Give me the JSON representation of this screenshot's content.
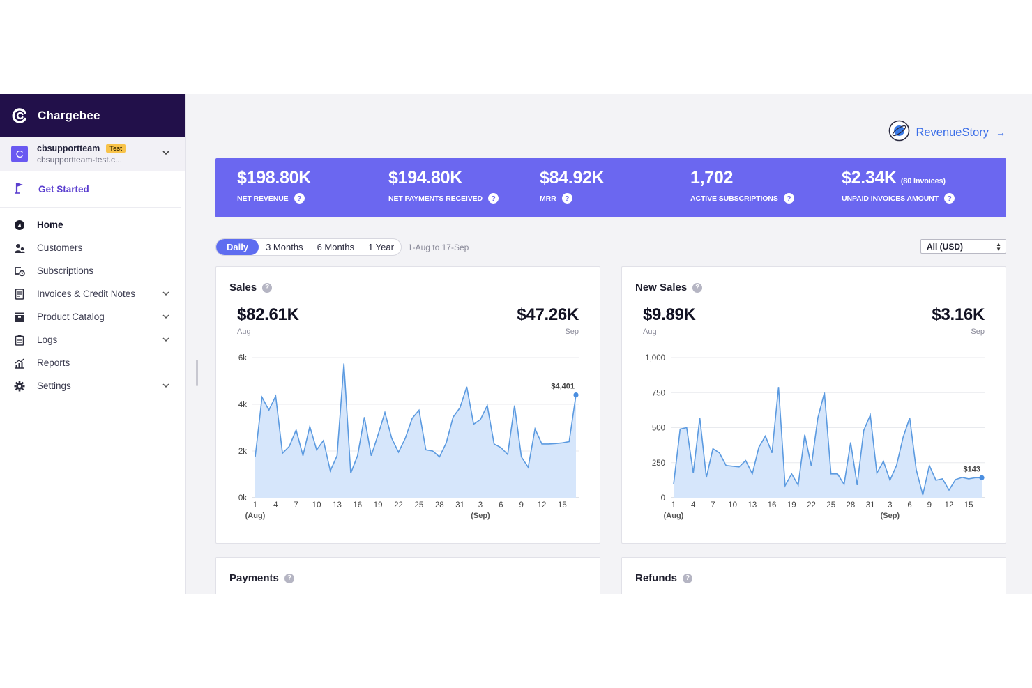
{
  "brand": {
    "name": "Chargebee"
  },
  "site": {
    "avatar_letter": "C",
    "name": "cbsupportteam",
    "badge": "Test",
    "domain": "cbsupportteam-test.c..."
  },
  "nav": {
    "get_started": "Get Started",
    "items": [
      {
        "label": "Home",
        "icon": "home-icon",
        "active": true,
        "has_chevron": false
      },
      {
        "label": "Customers",
        "icon": "customers-icon",
        "has_chevron": false
      },
      {
        "label": "Subscriptions",
        "icon": "subscriptions-icon",
        "has_chevron": false
      },
      {
        "label": "Invoices & Credit Notes",
        "icon": "invoice-icon",
        "has_chevron": true
      },
      {
        "label": "Product Catalog",
        "icon": "catalog-icon",
        "has_chevron": true
      },
      {
        "label": "Logs",
        "icon": "logs-icon",
        "has_chevron": true
      },
      {
        "label": "Reports",
        "icon": "reports-icon",
        "has_chevron": false
      },
      {
        "label": "Settings",
        "icon": "gear-icon",
        "has_chevron": true
      }
    ]
  },
  "revenue_story": {
    "label": "RevenueStory",
    "arrow": "→"
  },
  "kpis": [
    {
      "value": "$198.80K",
      "sub": "",
      "label": "NET REVENUE"
    },
    {
      "value": "$194.80K",
      "sub": "",
      "label": "NET PAYMENTS RECEIVED"
    },
    {
      "value": "$84.92K",
      "sub": "",
      "label": "MRR"
    },
    {
      "value": "1,702",
      "sub": "",
      "label": "ACTIVE SUBSCRIPTIONS"
    },
    {
      "value": "$2.34K",
      "sub": "(80 Invoices)",
      "label": "UNPAID INVOICES AMOUNT"
    }
  ],
  "range": {
    "options": [
      "Daily",
      "3 Months",
      "6 Months",
      "1 Year"
    ],
    "active": "Daily",
    "text": "1-Aug to 17-Sep",
    "currency": "All (USD)"
  },
  "cards": {
    "sales": {
      "title": "Sales",
      "left_value": "$82.61K",
      "left_label": "Aug",
      "right_value": "$47.26K",
      "right_label": "Sep"
    },
    "new_sales": {
      "title": "New Sales",
      "left_value": "$9.89K",
      "left_label": "Aug",
      "right_value": "$3.16K",
      "right_label": "Sep"
    },
    "payments": {
      "title": "Payments"
    },
    "refunds": {
      "title": "Refunds"
    }
  },
  "chart_data": [
    {
      "type": "area",
      "title": "Sales",
      "x_tick_labels": [
        "1",
        "4",
        "7",
        "10",
        "13",
        "16",
        "19",
        "22",
        "25",
        "28",
        "31",
        "3",
        "6",
        "9",
        "12",
        "15"
      ],
      "x_group_labels": [
        "(Aug)",
        "(Sep)"
      ],
      "y_tick_labels": [
        "0k",
        "2k",
        "4k",
        "6k"
      ],
      "ylim": [
        0,
        6000
      ],
      "end_label": "$4,401",
      "x": [
        "Aug 1",
        "Aug 2",
        "Aug 3",
        "Aug 4",
        "Aug 5",
        "Aug 6",
        "Aug 7",
        "Aug 8",
        "Aug 9",
        "Aug 10",
        "Aug 11",
        "Aug 12",
        "Aug 13",
        "Aug 14",
        "Aug 15",
        "Aug 16",
        "Aug 17",
        "Aug 18",
        "Aug 19",
        "Aug 20",
        "Aug 21",
        "Aug 22",
        "Aug 23",
        "Aug 24",
        "Aug 25",
        "Aug 26",
        "Aug 27",
        "Aug 28",
        "Aug 29",
        "Aug 30",
        "Aug 31",
        "Sep 1",
        "Sep 2",
        "Sep 3",
        "Sep 4",
        "Sep 5",
        "Sep 6",
        "Sep 7",
        "Sep 8",
        "Sep 9",
        "Sep 10",
        "Sep 11",
        "Sep 12",
        "Sep 13",
        "Sep 14",
        "Sep 15",
        "Sep 16",
        "Sep 17"
      ],
      "values": [
        1750,
        4300,
        3750,
        4350,
        1900,
        2200,
        2900,
        1800,
        3050,
        2050,
        2450,
        1150,
        1800,
        5750,
        1050,
        1800,
        3450,
        1800,
        2700,
        3650,
        2550,
        1950,
        2550,
        3400,
        3750,
        2050,
        2000,
        1750,
        2350,
        3450,
        3850,
        4750,
        3150,
        3350,
        3950,
        2300,
        2150,
        1850,
        3950,
        1750,
        1300,
        2950,
        2300,
        2300,
        2320,
        2350,
        2400,
        4401
      ]
    },
    {
      "type": "area",
      "title": "New Sales",
      "x_tick_labels": [
        "1",
        "4",
        "7",
        "10",
        "13",
        "16",
        "19",
        "22",
        "25",
        "28",
        "31",
        "3",
        "6",
        "9",
        "12",
        "15"
      ],
      "x_group_labels": [
        "(Aug)",
        "(Sep)"
      ],
      "y_tick_labels": [
        "0",
        "250",
        "500",
        "750",
        "1,000"
      ],
      "ylim": [
        0,
        1000
      ],
      "end_label": "$143",
      "x": [
        "Aug 1",
        "Aug 2",
        "Aug 3",
        "Aug 4",
        "Aug 5",
        "Aug 6",
        "Aug 7",
        "Aug 8",
        "Aug 9",
        "Aug 10",
        "Aug 11",
        "Aug 12",
        "Aug 13",
        "Aug 14",
        "Aug 15",
        "Aug 16",
        "Aug 17",
        "Aug 18",
        "Aug 19",
        "Aug 20",
        "Aug 21",
        "Aug 22",
        "Aug 23",
        "Aug 24",
        "Aug 25",
        "Aug 26",
        "Aug 27",
        "Aug 28",
        "Aug 29",
        "Aug 30",
        "Aug 31",
        "Sep 1",
        "Sep 2",
        "Sep 3",
        "Sep 4",
        "Sep 5",
        "Sep 6",
        "Sep 7",
        "Sep 8",
        "Sep 9",
        "Sep 10",
        "Sep 11",
        "Sep 12",
        "Sep 13",
        "Sep 14",
        "Sep 15",
        "Sep 16",
        "Sep 17"
      ],
      "values": [
        95,
        490,
        500,
        175,
        570,
        145,
        350,
        320,
        230,
        225,
        220,
        265,
        170,
        360,
        440,
        320,
        790,
        85,
        170,
        90,
        450,
        225,
        570,
        750,
        170,
        170,
        95,
        395,
        90,
        480,
        590,
        175,
        260,
        125,
        230,
        430,
        570,
        200,
        20,
        230,
        125,
        135,
        55,
        130,
        145,
        135,
        143,
        143
      ]
    }
  ],
  "colors": {
    "sidebar_brand_bg": "#22104a",
    "kpi_band": "#6b67f0",
    "accent": "#5b3fcf",
    "chart_line": "#5b9ae0",
    "chart_fill": "#d6e6fb",
    "link": "#3b6ee8"
  }
}
